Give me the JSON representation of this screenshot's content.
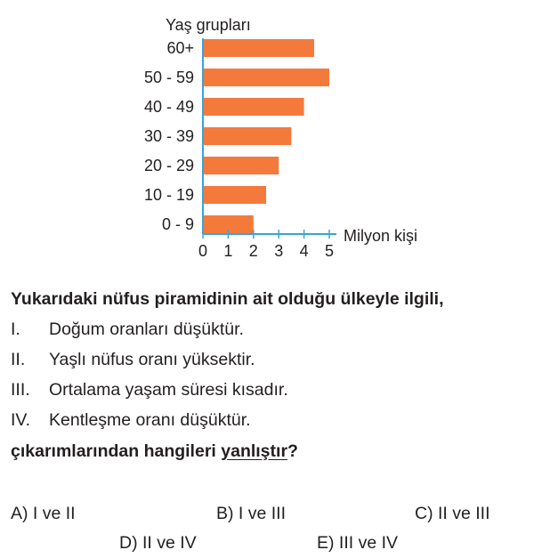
{
  "chart_data": {
    "type": "bar",
    "orientation": "horizontal",
    "ylabel": "Yaş grupları",
    "xlabel": "Milyon kişi",
    "categories": [
      "60+",
      "50 - 59",
      "40 - 49",
      "30 - 39",
      "20 - 29",
      "10 - 19",
      "0 - 9"
    ],
    "values": [
      4.4,
      5.0,
      4.0,
      3.5,
      3.0,
      2.5,
      2.0
    ],
    "xticks": [
      "0",
      "1",
      "2",
      "3",
      "4",
      "5"
    ],
    "xlim": [
      0,
      5
    ],
    "bar_color": "#f47a3c",
    "axis_color": "#3aa3d9"
  },
  "question": {
    "stem": "Yukarıdaki nüfus piramidinin ait olduğu ülkeyle ilgili,",
    "statements": [
      {
        "num": "I.",
        "text": "Doğum oranları düşüktür."
      },
      {
        "num": "II.",
        "text": "Yaşlı nüfus oranı yüksektir."
      },
      {
        "num": "III.",
        "text": "Ortalama yaşam süresi kısadır."
      },
      {
        "num": "IV.",
        "text": "Kentleşme oranı düşüktür."
      }
    ],
    "ending_prefix": "çıkarımlarından hangileri ",
    "ending_underlined": "yanlıştır",
    "ending_suffix": "?",
    "options": {
      "a": "A) I ve II",
      "b": "B) I ve III",
      "c": "C) II ve III",
      "d": "D) II ve IV",
      "e": "E) III ve IV"
    }
  }
}
